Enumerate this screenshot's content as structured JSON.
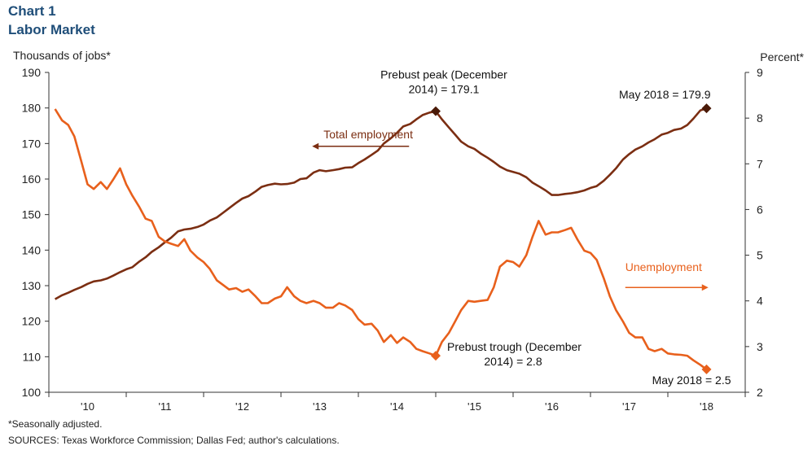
{
  "header": {
    "chart_num": "Chart 1",
    "title": "Labor Market"
  },
  "footnotes": {
    "note": "*Seasonally adjusted.",
    "sources": "SOURCES: Texas Workforce Commission; Dallas Fed; author's calculations."
  },
  "colors": {
    "employment": "#7b2e12",
    "unemployment": "#e8601c",
    "axis": "#333333"
  },
  "chart_data": {
    "type": "line",
    "y_left": {
      "label": "Thousands  of jobs*",
      "range": [
        100,
        190
      ],
      "ticks": [
        "100",
        "110",
        "120",
        "130",
        "140",
        "150",
        "160",
        "170",
        "180",
        "190"
      ]
    },
    "y_right": {
      "label": "Percent*",
      "range": [
        2,
        9
      ],
      "ticks": [
        "2",
        "3",
        "4",
        "5",
        "6",
        "7",
        "8",
        "9"
      ]
    },
    "x_range": [
      2009.5,
      2018.5
    ],
    "x_ticks": [
      {
        "label": "'10",
        "value": 2010.0
      },
      {
        "label": "'11",
        "value": 2011.0
      },
      {
        "label": "'12",
        "value": 2012.0
      },
      {
        "label": "'13",
        "value": 2013.0
      },
      {
        "label": "'14",
        "value": 2014.0
      },
      {
        "label": "'15",
        "value": 2015.0
      },
      {
        "label": "'16",
        "value": 2016.0
      },
      {
        "label": "'17",
        "value": 2017.0
      },
      {
        "label": "'18",
        "value": 2018.0
      }
    ],
    "series": [
      {
        "name": "Total employment",
        "axis": "left",
        "points": [
          [
            2009.58,
            126.2
          ],
          [
            2009.67,
            127.3
          ],
          [
            2009.75,
            128.0
          ],
          [
            2009.83,
            128.8
          ],
          [
            2009.92,
            129.6
          ],
          [
            2010.0,
            130.5
          ],
          [
            2010.08,
            131.2
          ],
          [
            2010.17,
            131.5
          ],
          [
            2010.25,
            132.0
          ],
          [
            2010.33,
            132.8
          ],
          [
            2010.42,
            133.8
          ],
          [
            2010.5,
            134.6
          ],
          [
            2010.58,
            135.2
          ],
          [
            2010.67,
            136.8
          ],
          [
            2010.75,
            138.0
          ],
          [
            2010.83,
            139.5
          ],
          [
            2010.92,
            140.8
          ],
          [
            2011.0,
            142.2
          ],
          [
            2011.08,
            143.5
          ],
          [
            2011.17,
            145.3
          ],
          [
            2011.25,
            145.8
          ],
          [
            2011.33,
            146.0
          ],
          [
            2011.42,
            146.5
          ],
          [
            2011.5,
            147.2
          ],
          [
            2011.58,
            148.3
          ],
          [
            2011.67,
            149.2
          ],
          [
            2011.75,
            150.5
          ],
          [
            2011.83,
            151.8
          ],
          [
            2011.92,
            153.3
          ],
          [
            2012.0,
            154.5
          ],
          [
            2012.08,
            155.2
          ],
          [
            2012.17,
            156.5
          ],
          [
            2012.25,
            157.8
          ],
          [
            2012.33,
            158.3
          ],
          [
            2012.42,
            158.7
          ],
          [
            2012.5,
            158.5
          ],
          [
            2012.58,
            158.6
          ],
          [
            2012.67,
            159.0
          ],
          [
            2012.75,
            160.0
          ],
          [
            2012.83,
            160.2
          ],
          [
            2012.92,
            161.8
          ],
          [
            2013.0,
            162.5
          ],
          [
            2013.08,
            162.2
          ],
          [
            2013.17,
            162.5
          ],
          [
            2013.25,
            162.8
          ],
          [
            2013.33,
            163.2
          ],
          [
            2013.42,
            163.3
          ],
          [
            2013.5,
            164.5
          ],
          [
            2013.58,
            165.5
          ],
          [
            2013.67,
            166.8
          ],
          [
            2013.75,
            168.0
          ],
          [
            2013.83,
            170.0
          ],
          [
            2013.92,
            171.5
          ],
          [
            2014.0,
            173.0
          ],
          [
            2014.08,
            174.8
          ],
          [
            2014.17,
            175.5
          ],
          [
            2014.25,
            176.8
          ],
          [
            2014.33,
            178.0
          ],
          [
            2014.42,
            178.7
          ],
          [
            2014.5,
            179.1
          ],
          [
            2014.58,
            176.8
          ],
          [
            2014.67,
            174.5
          ],
          [
            2014.75,
            172.5
          ],
          [
            2014.83,
            170.5
          ],
          [
            2014.92,
            169.2
          ],
          [
            2015.0,
            168.5
          ],
          [
            2015.08,
            167.2
          ],
          [
            2015.17,
            166.0
          ],
          [
            2015.25,
            164.8
          ],
          [
            2015.33,
            163.5
          ],
          [
            2015.42,
            162.5
          ],
          [
            2015.5,
            162.0
          ],
          [
            2015.58,
            161.5
          ],
          [
            2015.67,
            160.5
          ],
          [
            2015.75,
            159.0
          ],
          [
            2015.83,
            158.0
          ],
          [
            2015.92,
            156.8
          ],
          [
            2016.0,
            155.5
          ],
          [
            2016.08,
            155.5
          ],
          [
            2016.17,
            155.8
          ],
          [
            2016.25,
            156.0
          ],
          [
            2016.33,
            156.3
          ],
          [
            2016.42,
            156.8
          ],
          [
            2016.5,
            157.5
          ],
          [
            2016.58,
            158.0
          ],
          [
            2016.67,
            159.5
          ],
          [
            2016.75,
            161.2
          ],
          [
            2016.83,
            163.0
          ],
          [
            2016.92,
            165.5
          ],
          [
            2017.0,
            167.0
          ],
          [
            2017.08,
            168.3
          ],
          [
            2017.17,
            169.2
          ],
          [
            2017.25,
            170.3
          ],
          [
            2017.33,
            171.2
          ],
          [
            2017.42,
            172.5
          ],
          [
            2017.5,
            173.0
          ],
          [
            2017.58,
            173.8
          ],
          [
            2017.67,
            174.2
          ],
          [
            2017.75,
            175.2
          ],
          [
            2017.83,
            177.0
          ],
          [
            2017.92,
            179.3
          ],
          [
            2018.0,
            179.9
          ]
        ],
        "label_position": [
          2013.05,
          171.5
        ]
      },
      {
        "name": "Unemployment",
        "axis": "right",
        "points": [
          [
            2009.58,
            8.2
          ],
          [
            2009.67,
            7.95
          ],
          [
            2009.75,
            7.85
          ],
          [
            2009.83,
            7.6
          ],
          [
            2009.92,
            7.05
          ],
          [
            2010.0,
            6.55
          ],
          [
            2010.08,
            6.45
          ],
          [
            2010.17,
            6.6
          ],
          [
            2010.25,
            6.45
          ],
          [
            2010.33,
            6.65
          ],
          [
            2010.42,
            6.9
          ],
          [
            2010.5,
            6.55
          ],
          [
            2010.58,
            6.3
          ],
          [
            2010.67,
            6.05
          ],
          [
            2010.75,
            5.8
          ],
          [
            2010.83,
            5.75
          ],
          [
            2010.92,
            5.4
          ],
          [
            2011.0,
            5.3
          ],
          [
            2011.08,
            5.25
          ],
          [
            2011.17,
            5.2
          ],
          [
            2011.25,
            5.35
          ],
          [
            2011.33,
            5.1
          ],
          [
            2011.42,
            4.95
          ],
          [
            2011.5,
            4.85
          ],
          [
            2011.58,
            4.7
          ],
          [
            2011.67,
            4.45
          ],
          [
            2011.75,
            4.35
          ],
          [
            2011.83,
            4.25
          ],
          [
            2011.92,
            4.28
          ],
          [
            2012.0,
            4.2
          ],
          [
            2012.08,
            4.25
          ],
          [
            2012.17,
            4.1
          ],
          [
            2012.25,
            3.95
          ],
          [
            2012.33,
            3.95
          ],
          [
            2012.42,
            4.05
          ],
          [
            2012.5,
            4.1
          ],
          [
            2012.58,
            4.3
          ],
          [
            2012.67,
            4.1
          ],
          [
            2012.75,
            4.0
          ],
          [
            2012.83,
            3.95
          ],
          [
            2012.92,
            4.0
          ],
          [
            2013.0,
            3.95
          ],
          [
            2013.08,
            3.85
          ],
          [
            2013.17,
            3.85
          ],
          [
            2013.25,
            3.95
          ],
          [
            2013.33,
            3.9
          ],
          [
            2013.42,
            3.8
          ],
          [
            2013.5,
            3.6
          ],
          [
            2013.58,
            3.48
          ],
          [
            2013.67,
            3.5
          ],
          [
            2013.75,
            3.35
          ],
          [
            2013.83,
            3.1
          ],
          [
            2013.92,
            3.25
          ],
          [
            2014.0,
            3.08
          ],
          [
            2014.08,
            3.2
          ],
          [
            2014.17,
            3.1
          ],
          [
            2014.25,
            2.95
          ],
          [
            2014.33,
            2.9
          ],
          [
            2014.42,
            2.85
          ],
          [
            2014.5,
            2.8
          ],
          [
            2014.58,
            3.1
          ],
          [
            2014.67,
            3.3
          ],
          [
            2014.75,
            3.55
          ],
          [
            2014.83,
            3.8
          ],
          [
            2014.92,
            4.0
          ],
          [
            2015.0,
            3.98
          ],
          [
            2015.08,
            4.0
          ],
          [
            2015.17,
            4.02
          ],
          [
            2015.25,
            4.3
          ],
          [
            2015.33,
            4.75
          ],
          [
            2015.42,
            4.88
          ],
          [
            2015.5,
            4.85
          ],
          [
            2015.58,
            4.75
          ],
          [
            2015.67,
            5.0
          ],
          [
            2015.75,
            5.4
          ],
          [
            2015.83,
            5.75
          ],
          [
            2015.92,
            5.45
          ],
          [
            2016.0,
            5.5
          ],
          [
            2016.08,
            5.5
          ],
          [
            2016.17,
            5.55
          ],
          [
            2016.25,
            5.6
          ],
          [
            2016.33,
            5.35
          ],
          [
            2016.42,
            5.1
          ],
          [
            2016.5,
            5.05
          ],
          [
            2016.58,
            4.9
          ],
          [
            2016.67,
            4.5
          ],
          [
            2016.75,
            4.1
          ],
          [
            2016.83,
            3.8
          ],
          [
            2016.92,
            3.55
          ],
          [
            2017.0,
            3.3
          ],
          [
            2017.08,
            3.2
          ],
          [
            2017.17,
            3.2
          ],
          [
            2017.25,
            2.95
          ],
          [
            2017.33,
            2.9
          ],
          [
            2017.42,
            2.95
          ],
          [
            2017.5,
            2.85
          ],
          [
            2017.58,
            2.83
          ],
          [
            2017.67,
            2.82
          ],
          [
            2017.75,
            2.8
          ],
          [
            2017.83,
            2.7
          ],
          [
            2017.92,
            2.6
          ],
          [
            2018.0,
            2.5
          ]
        ],
        "label_position": [
          2016.95,
          4.65
        ]
      }
    ],
    "annotations": [
      {
        "id": "prebust-peak",
        "lines": [
          "Prebust peak (December",
          "2014) = 179.1"
        ],
        "point": [
          2014.5,
          179.1
        ],
        "axis": "left",
        "marker_color": "#4a1a08"
      },
      {
        "id": "may2018-emp",
        "lines": [
          "May 2018 = 179.9"
        ],
        "point": [
          2018.0,
          179.9
        ],
        "axis": "left",
        "marker_color": "#4a1a08"
      },
      {
        "id": "prebust-trough",
        "lines": [
          "Prebust trough (December",
          "2014) = 2.8"
        ],
        "point": [
          2014.5,
          2.8
        ],
        "axis": "right",
        "marker_color": "#e8601c"
      },
      {
        "id": "may2018-unemp",
        "lines": [
          "May 2018 = 2.5"
        ],
        "point": [
          2018.0,
          2.5
        ],
        "axis": "right",
        "marker_color": "#e8601c"
      }
    ]
  }
}
